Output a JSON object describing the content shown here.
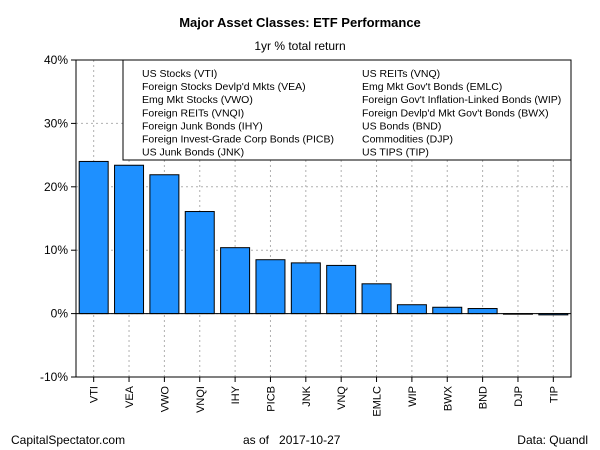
{
  "chart_data": {
    "type": "bar",
    "title": "Major Asset Classes: ETF Performance",
    "subtitle": "1yr % total return",
    "categories": [
      "VTI",
      "VEA",
      "VWO",
      "VNQI",
      "IHY",
      "PICB",
      "JNK",
      "VNQ",
      "EMLC",
      "WIP",
      "BWX",
      "BND",
      "DJP",
      "TIP"
    ],
    "values": [
      24.0,
      23.4,
      21.9,
      16.1,
      10.4,
      8.5,
      8.0,
      7.6,
      4.7,
      1.4,
      1.0,
      0.8,
      0.0,
      -0.2
    ],
    "ylim": [
      -10,
      40
    ],
    "yticks": [
      -10,
      0,
      10,
      20,
      30,
      40
    ],
    "ytick_labels": [
      "-10%",
      "0%",
      "10%",
      "20%",
      "30%",
      "40%"
    ],
    "grid": true,
    "bar_color": "#1e90ff",
    "legend_placement": "top-right",
    "legend_entries": [
      "US Stocks (VTI)",
      "Foreign Stocks Devlp'd Mkts (VEA)",
      "Emg Mkt Stocks (VWO)",
      "Foreign REITs (VNQI)",
      "Foreign Junk Bonds (IHY)",
      "Foreign Invest-Grade Corp Bonds (PICB)",
      "US Junk Bonds (JNK)",
      "US REITs (VNQ)",
      "Emg Mkt Gov't Bonds (EMLC)",
      "Foreign Gov't Inflation-Linked Bonds (WIP)",
      "Foreign Devlp'd Mkt Gov't Bonds (BWX)",
      "US Bonds (BND)",
      "Commodities (DJP)",
      "US TIPS (TIP)"
    ]
  },
  "footer": {
    "source_site": "CapitalSpectator.com",
    "as_of_label": "as of",
    "as_of_date": "2017-10-27",
    "data_source": "Data: Quandl"
  }
}
